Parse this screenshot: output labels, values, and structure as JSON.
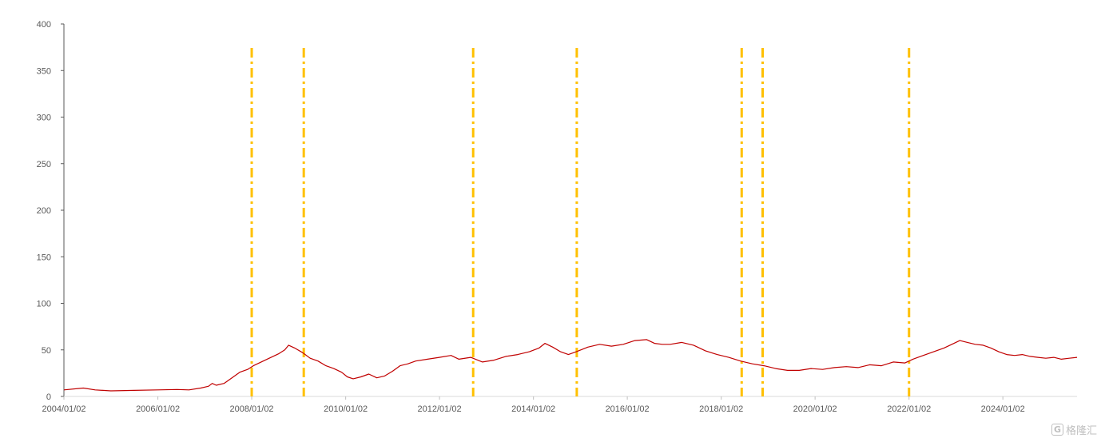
{
  "chart_data": {
    "type": "line",
    "title": "",
    "xlabel": "",
    "ylabel": "",
    "ylim": [
      0,
      400
    ],
    "yticks": [
      0,
      50,
      100,
      150,
      200,
      250,
      300,
      350,
      400
    ],
    "xlim": [
      "2004-01-02",
      "2025-08-01"
    ],
    "xticks": [
      {
        "date": "2004-01-02",
        "label": "2004/01/02"
      },
      {
        "date": "2006-01-02",
        "label": "2006/01/02"
      },
      {
        "date": "2008-01-02",
        "label": "2008/01/02"
      },
      {
        "date": "2010-01-02",
        "label": "2010/01/02"
      },
      {
        "date": "2012-01-02",
        "label": "2012/01/02"
      },
      {
        "date": "2014-01-02",
        "label": "2014/01/02"
      },
      {
        "date": "2016-01-02",
        "label": "2016/01/02"
      },
      {
        "date": "2018-01-02",
        "label": "2018/01/02"
      },
      {
        "date": "2020-01-02",
        "label": "2020/01/02"
      },
      {
        "date": "2022-01-02",
        "label": "2022/01/02"
      },
      {
        "date": "2024-01-02",
        "label": "2024/01/02"
      }
    ],
    "grid": false,
    "legend": "none",
    "series": [
      {
        "color": "#c00000",
        "points": [
          [
            "2004-01-02",
            7
          ],
          [
            "2004-06-01",
            9
          ],
          [
            "2004-09-01",
            7
          ],
          [
            "2005-01-01",
            6
          ],
          [
            "2005-07-01",
            6.5
          ],
          [
            "2006-01-01",
            7
          ],
          [
            "2006-06-01",
            7.5
          ],
          [
            "2006-09-01",
            7
          ],
          [
            "2006-12-01",
            9
          ],
          [
            "2007-02-01",
            11
          ],
          [
            "2007-03-01",
            14
          ],
          [
            "2007-04-01",
            12
          ],
          [
            "2007-06-01",
            14
          ],
          [
            "2007-08-01",
            20
          ],
          [
            "2007-10-01",
            26
          ],
          [
            "2007-12-01",
            29
          ],
          [
            "2008-01-15",
            33
          ],
          [
            "2008-04-01",
            38
          ],
          [
            "2008-06-01",
            42
          ],
          [
            "2008-08-01",
            46
          ],
          [
            "2008-09-15",
            50
          ],
          [
            "2008-10-15",
            55
          ],
          [
            "2008-12-01",
            52
          ],
          [
            "2009-02-01",
            47
          ],
          [
            "2009-04-01",
            41
          ],
          [
            "2009-06-01",
            38
          ],
          [
            "2009-08-01",
            33
          ],
          [
            "2009-10-01",
            30
          ],
          [
            "2009-12-01",
            26
          ],
          [
            "2010-01-15",
            21
          ],
          [
            "2010-03-01",
            19
          ],
          [
            "2010-05-01",
            21
          ],
          [
            "2010-07-01",
            24
          ],
          [
            "2010-09-01",
            20
          ],
          [
            "2010-11-01",
            22
          ],
          [
            "2011-01-01",
            27
          ],
          [
            "2011-03-01",
            33
          ],
          [
            "2011-05-01",
            35
          ],
          [
            "2011-07-01",
            38
          ],
          [
            "2011-10-01",
            40
          ],
          [
            "2012-01-01",
            42
          ],
          [
            "2012-04-01",
            44
          ],
          [
            "2012-06-01",
            40
          ],
          [
            "2012-09-01",
            42
          ],
          [
            "2012-12-01",
            37
          ],
          [
            "2013-03-01",
            39
          ],
          [
            "2013-06-01",
            43
          ],
          [
            "2013-09-01",
            45
          ],
          [
            "2013-12-01",
            48
          ],
          [
            "2014-02-15",
            52
          ],
          [
            "2014-04-01",
            57
          ],
          [
            "2014-06-01",
            53
          ],
          [
            "2014-08-01",
            48
          ],
          [
            "2014-10-01",
            45
          ],
          [
            "2014-12-01",
            48
          ],
          [
            "2015-03-01",
            53
          ],
          [
            "2015-06-01",
            56
          ],
          [
            "2015-09-01",
            54
          ],
          [
            "2015-12-01",
            56
          ],
          [
            "2016-03-01",
            60
          ],
          [
            "2016-06-01",
            61
          ],
          [
            "2016-08-01",
            57
          ],
          [
            "2016-10-01",
            56
          ],
          [
            "2016-12-01",
            56
          ],
          [
            "2017-03-01",
            58
          ],
          [
            "2017-06-01",
            55
          ],
          [
            "2017-09-01",
            49
          ],
          [
            "2017-12-01",
            45
          ],
          [
            "2018-03-01",
            42
          ],
          [
            "2018-06-01",
            38
          ],
          [
            "2018-09-01",
            35
          ],
          [
            "2018-12-01",
            33
          ],
          [
            "2019-03-01",
            30
          ],
          [
            "2019-06-01",
            28
          ],
          [
            "2019-09-01",
            28
          ],
          [
            "2019-12-01",
            30
          ],
          [
            "2020-03-01",
            29
          ],
          [
            "2020-06-01",
            31
          ],
          [
            "2020-09-01",
            32
          ],
          [
            "2020-12-01",
            31
          ],
          [
            "2021-03-01",
            34
          ],
          [
            "2021-06-01",
            33
          ],
          [
            "2021-09-01",
            37
          ],
          [
            "2021-12-01",
            36
          ],
          [
            "2022-02-01",
            40
          ],
          [
            "2022-04-01",
            43
          ],
          [
            "2022-06-01",
            46
          ],
          [
            "2022-08-01",
            49
          ],
          [
            "2022-10-01",
            52
          ],
          [
            "2022-12-01",
            56
          ],
          [
            "2023-02-01",
            60
          ],
          [
            "2023-04-01",
            58
          ],
          [
            "2023-06-01",
            56
          ],
          [
            "2023-08-01",
            55
          ],
          [
            "2023-10-01",
            52
          ],
          [
            "2023-12-01",
            48
          ],
          [
            "2024-02-01",
            45
          ],
          [
            "2024-04-01",
            44
          ],
          [
            "2024-06-01",
            45
          ],
          [
            "2024-08-01",
            43
          ],
          [
            "2024-10-01",
            42
          ],
          [
            "2024-12-01",
            41
          ],
          [
            "2025-02-01",
            42
          ],
          [
            "2025-04-01",
            40
          ],
          [
            "2025-06-01",
            41
          ],
          [
            "2025-08-01",
            42
          ]
        ]
      }
    ],
    "markers": {
      "color": "#ffc000",
      "style": "dash-dot",
      "dates": [
        "2008-01-02",
        "2009-02-10",
        "2012-09-20",
        "2014-12-05",
        "2018-06-10",
        "2018-11-20",
        "2022-01-02"
      ]
    }
  }
}
